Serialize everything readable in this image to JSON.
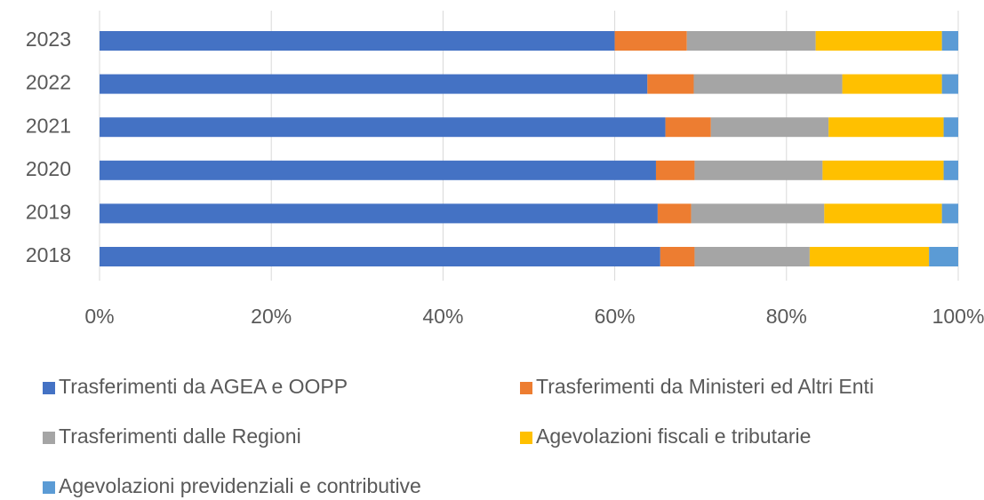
{
  "chart_data": {
    "type": "bar",
    "orientation": "horizontal",
    "stacked": true,
    "categories": [
      "2023",
      "2022",
      "2021",
      "2020",
      "2019",
      "2018"
    ],
    "series": [
      {
        "name": "Trasferimenti da AGEA e OOPP",
        "color": "#4472c4",
        "values": [
          60,
          63.8,
          65.9,
          64.8,
          65,
          65.3
        ]
      },
      {
        "name": "Trasferimenti da Ministeri ed Altri Enti",
        "color": "#ed7d31",
        "values": [
          8.4,
          5.4,
          5.3,
          4.5,
          3.9,
          4
        ]
      },
      {
        "name": "Trasferimenti dalle Regioni",
        "color": "#a5a5a5",
        "values": [
          15,
          17.3,
          13.7,
          14.9,
          15.5,
          13.4
        ]
      },
      {
        "name": "Agevolazioni fiscali e tributarie",
        "color": "#ffc000",
        "values": [
          14.7,
          11.6,
          13.4,
          14.1,
          13.7,
          13.9
        ]
      },
      {
        "name": "Agevolazioni previdenziali e contributive",
        "color": "#5b9bd5",
        "values": [
          1.9,
          1.9,
          1.7,
          1.7,
          1.9,
          3.4
        ]
      }
    ],
    "xlim": [
      0,
      100
    ],
    "xticks": [
      {
        "value": 0,
        "label": "0%"
      },
      {
        "value": 20,
        "label": "20%"
      },
      {
        "value": 40,
        "label": "40%"
      },
      {
        "value": 60,
        "label": "60%"
      },
      {
        "value": 80,
        "label": "80%"
      },
      {
        "value": 100,
        "label": "100%"
      }
    ],
    "grid": true,
    "legend": "bottom"
  }
}
